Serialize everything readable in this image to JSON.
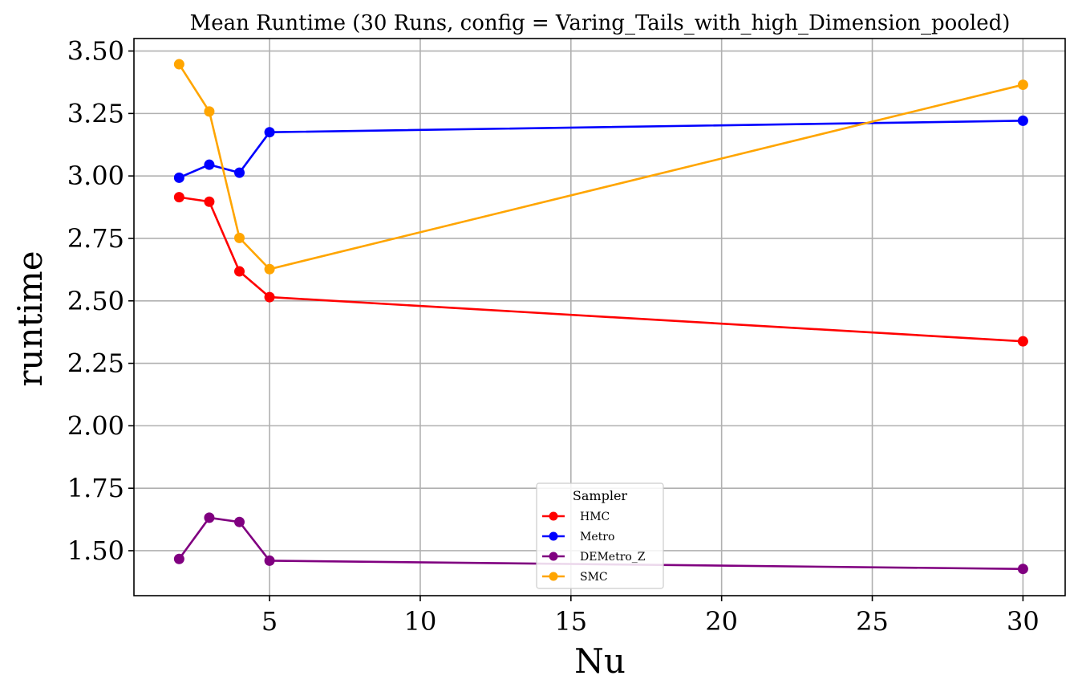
{
  "chart_data": {
    "type": "line",
    "title": "Mean Runtime (30 Runs, config = Varing_Tails_with_high_Dimension_pooled)",
    "xlabel": "Nu",
    "ylabel": "runtime",
    "xlim": [
      0.5,
      31.4
    ],
    "ylim": [
      1.32,
      3.55
    ],
    "xticks": [
      5,
      10,
      15,
      20,
      25,
      30
    ],
    "yticks": [
      1.5,
      1.75,
      2.0,
      2.25,
      2.5,
      2.75,
      3.0,
      3.25,
      3.5
    ],
    "ytick_labels": [
      "1.50",
      "1.75",
      "2.00",
      "2.25",
      "2.50",
      "2.75",
      "3.00",
      "3.25",
      "3.50"
    ],
    "grid": true,
    "legend": {
      "title": "Sampler",
      "placement": "lower-center"
    },
    "x": [
      2,
      3,
      4,
      5,
      30
    ],
    "series": [
      {
        "name": "HMC",
        "color": "#ff0000",
        "values": [
          2.915,
          2.897,
          2.618,
          2.515,
          2.338
        ]
      },
      {
        "name": "Metro",
        "color": "#0000ff",
        "values": [
          2.993,
          3.045,
          3.013,
          3.175,
          3.221
        ]
      },
      {
        "name": "DEMetro_Z",
        "color": "#800080",
        "values": [
          1.467,
          1.632,
          1.615,
          1.46,
          1.427
        ]
      },
      {
        "name": "SMC",
        "color": "#ffa500",
        "values": [
          3.447,
          3.258,
          2.752,
          2.627,
          3.365
        ]
      }
    ]
  }
}
